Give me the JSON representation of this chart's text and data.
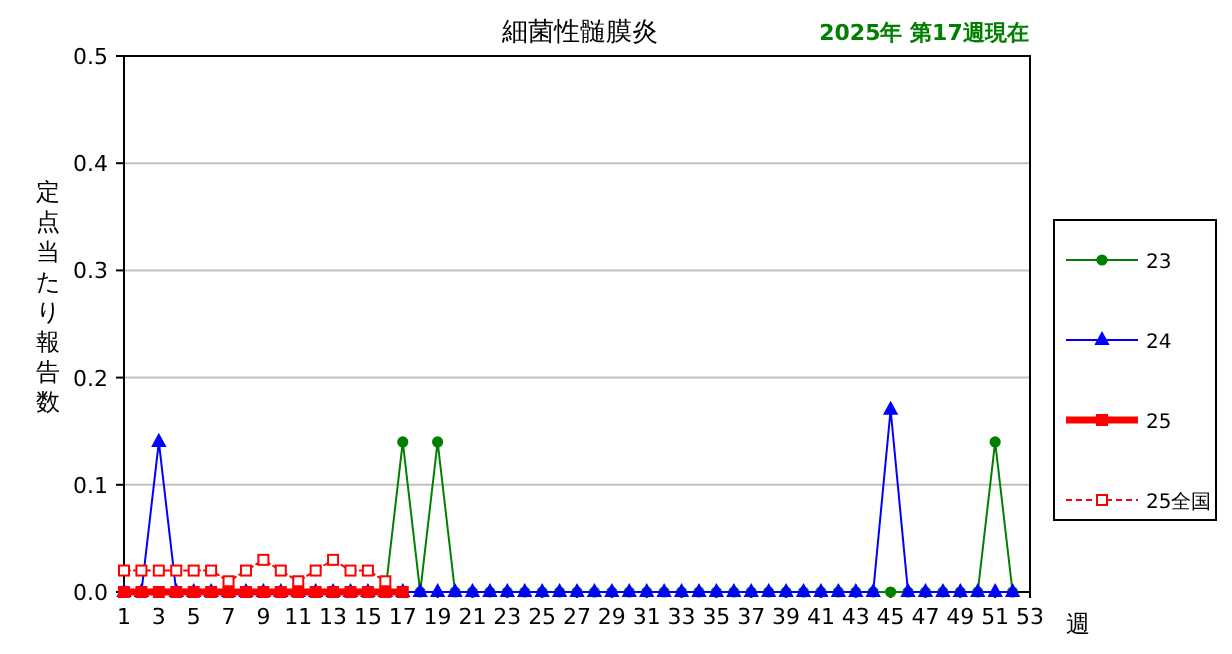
{
  "chart_data": {
    "type": "line",
    "title": "細菌性髄膜炎",
    "subtitle": "2025年 第17週現在",
    "ylabel": "定点当たり報告数",
    "xlabel": "週",
    "x": [
      1,
      2,
      3,
      4,
      5,
      6,
      7,
      8,
      9,
      10,
      11,
      12,
      13,
      14,
      15,
      16,
      17,
      18,
      19,
      20,
      21,
      22,
      23,
      24,
      25,
      26,
      27,
      28,
      29,
      30,
      31,
      32,
      33,
      34,
      35,
      36,
      37,
      38,
      39,
      40,
      41,
      42,
      43,
      44,
      45,
      46,
      47,
      48,
      49,
      50,
      51,
      52
    ],
    "xlim": [
      1,
      53
    ],
    "xticks": [
      1,
      3,
      5,
      7,
      9,
      11,
      13,
      15,
      17,
      19,
      21,
      23,
      25,
      27,
      29,
      31,
      33,
      35,
      37,
      39,
      41,
      43,
      45,
      47,
      49,
      51,
      53
    ],
    "ylim": [
      0,
      0.5
    ],
    "yticks": [
      {
        "value": 0,
        "label": "0.0"
      },
      0.1,
      0.2,
      0.3,
      0.4,
      0.5
    ],
    "grid": "y",
    "legend": "right",
    "series": [
      {
        "name": "23",
        "color": "#008000",
        "marker": "circle",
        "line_style": "solid",
        "values": [
          null,
          null,
          null,
          null,
          null,
          null,
          null,
          null,
          null,
          null,
          null,
          null,
          null,
          null,
          0,
          0,
          0.14,
          0,
          0.14,
          0,
          0,
          0,
          0,
          0,
          0,
          0,
          0,
          0,
          0,
          0,
          0,
          0,
          0,
          0,
          0,
          0,
          0,
          0,
          0,
          0,
          0,
          0,
          0,
          0,
          0,
          0,
          0,
          0,
          0,
          0,
          0.14,
          0
        ]
      },
      {
        "name": "24",
        "color": "#0000ff",
        "marker": "triangle",
        "line_style": "solid",
        "values": [
          0,
          0,
          0.14,
          0,
          0,
          0,
          0,
          0,
          0,
          0,
          0,
          0,
          0,
          0,
          0,
          0,
          0,
          0,
          0,
          0,
          0,
          0,
          0,
          0,
          0,
          0,
          0,
          0,
          0,
          0,
          0,
          0,
          0,
          0,
          0,
          0,
          0,
          0,
          0,
          0,
          0,
          0,
          0,
          0,
          0.17,
          0,
          0,
          0,
          0,
          0,
          0,
          0
        ]
      },
      {
        "name": "25",
        "color": "#ff0000",
        "marker": "square",
        "line_style": "solid",
        "values": [
          0,
          0,
          0,
          0,
          0,
          0,
          0,
          0,
          0,
          0,
          0,
          0,
          0,
          0,
          0,
          0,
          0,
          null,
          null,
          null,
          null,
          null,
          null,
          null,
          null,
          null,
          null,
          null,
          null,
          null,
          null,
          null,
          null,
          null,
          null,
          null,
          null,
          null,
          null,
          null,
          null,
          null,
          null,
          null,
          null,
          null,
          null,
          null,
          null,
          null,
          null,
          null
        ]
      },
      {
        "name": "25全国",
        "color": "#ff0000",
        "marker": "square",
        "line_style": "dashed",
        "values": [
          0.02,
          0.02,
          0.02,
          0.02,
          0.02,
          0.02,
          0.01,
          0.02,
          0.03,
          0.02,
          0.01,
          0.02,
          0.03,
          0.02,
          0.02,
          0.01,
          null,
          null,
          null,
          null,
          null,
          null,
          null,
          null,
          null,
          null,
          null,
          null,
          null,
          null,
          null,
          null,
          null,
          null,
          null,
          null,
          null,
          null,
          null,
          null,
          null,
          null,
          null,
          null,
          null,
          null,
          null,
          null,
          null,
          null,
          null,
          null
        ]
      }
    ]
  }
}
